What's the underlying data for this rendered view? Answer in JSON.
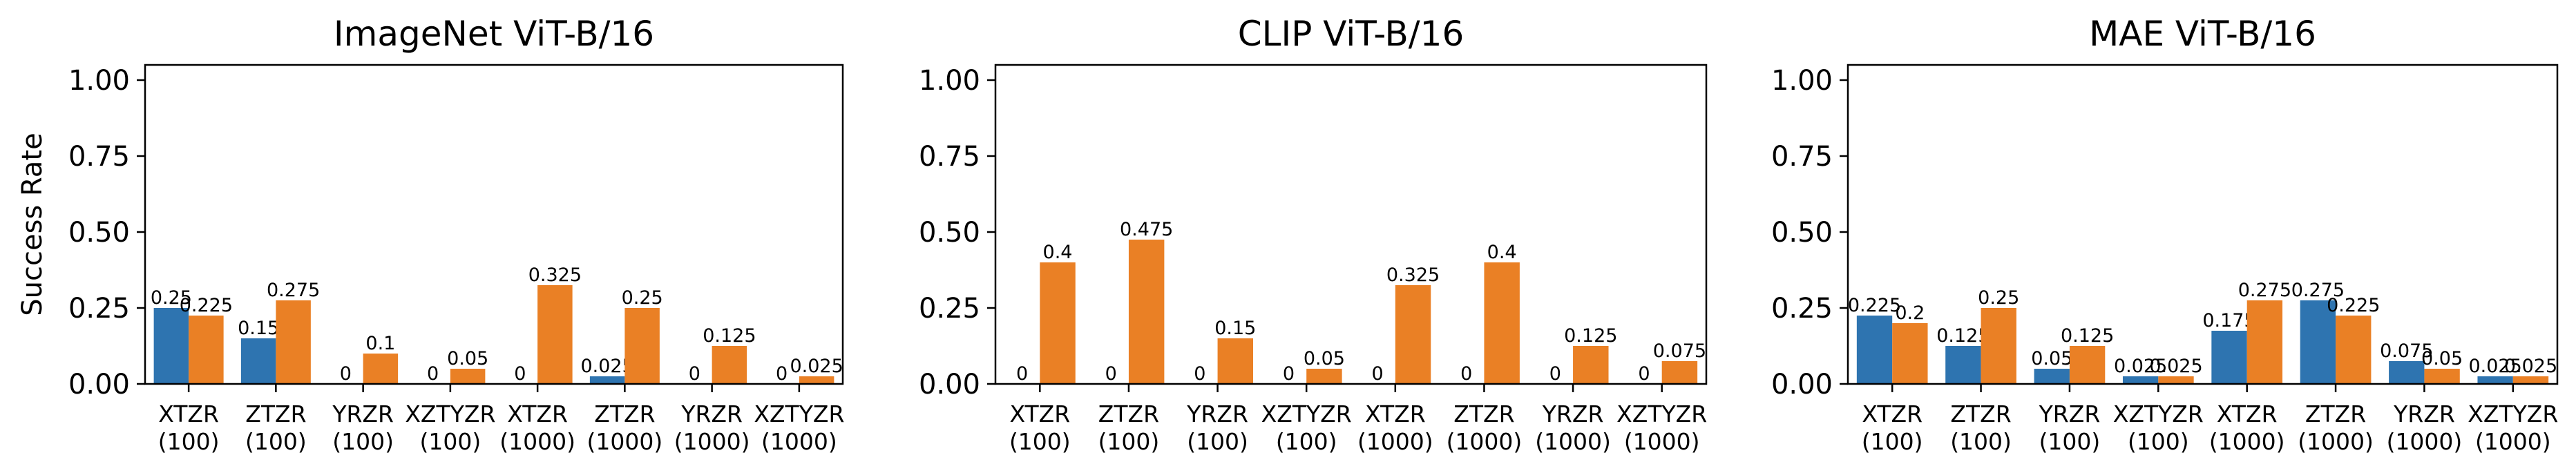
{
  "colors": {
    "series_a": "#2e74b0",
    "series_b": "#ea8025",
    "axis": "#000000"
  },
  "chart_data": [
    {
      "type": "bar",
      "title": "ImageNet ViT-B/16",
      "ylabel": "Success Rate",
      "ylim": [
        0,
        1.05
      ],
      "yticks": [
        "0.00",
        "0.25",
        "0.50",
        "0.75",
        "1.00"
      ],
      "categories": [
        [
          "XTZR",
          "(100)"
        ],
        [
          "ZTZR",
          "(100)"
        ],
        [
          "YRZR",
          "(100)"
        ],
        [
          "XZTYZR",
          "(100)"
        ],
        [
          "XTZR",
          "(1000)"
        ],
        [
          "ZTZR",
          "(1000)"
        ],
        [
          "YRZR",
          "(1000)"
        ],
        [
          "XZTYZR",
          "(1000)"
        ]
      ],
      "series": [
        {
          "values": [
            0.25,
            0.15,
            0,
            0,
            0,
            0.025,
            0,
            0
          ],
          "labels": [
            "0.25",
            "0.15",
            "0",
            "0",
            "0",
            "0.025",
            "0",
            "0"
          ]
        },
        {
          "values": [
            0.225,
            0.275,
            0.1,
            0.05,
            0.325,
            0.25,
            0.125,
            0.025
          ],
          "labels": [
            "0.225",
            "0.275",
            "0.1",
            "0.05",
            "0.325",
            "0.25",
            "0.125",
            "0.025"
          ]
        }
      ]
    },
    {
      "type": "bar",
      "title": "CLIP ViT-B/16",
      "ylabel": "",
      "ylim": [
        0,
        1.05
      ],
      "yticks": [
        "0.00",
        "0.25",
        "0.50",
        "0.75",
        "1.00"
      ],
      "categories": [
        [
          "XTZR",
          "(100)"
        ],
        [
          "ZTZR",
          "(100)"
        ],
        [
          "YRZR",
          "(100)"
        ],
        [
          "XZTYZR",
          "(100)"
        ],
        [
          "XTZR",
          "(1000)"
        ],
        [
          "ZTZR",
          "(1000)"
        ],
        [
          "YRZR",
          "(1000)"
        ],
        [
          "XZTYZR",
          "(1000)"
        ]
      ],
      "series": [
        {
          "values": [
            0,
            0,
            0,
            0,
            0,
            0,
            0,
            0
          ],
          "labels": [
            "0",
            "0",
            "0",
            "0",
            "0",
            "0",
            "0",
            "0"
          ]
        },
        {
          "values": [
            0.4,
            0.475,
            0.15,
            0.05,
            0.325,
            0.4,
            0.125,
            0.075
          ],
          "labels": [
            "0.4",
            "0.475",
            "0.15",
            "0.05",
            "0.325",
            "0.4",
            "0.125",
            "0.075"
          ]
        }
      ]
    },
    {
      "type": "bar",
      "title": "MAE ViT-B/16",
      "ylabel": "",
      "ylim": [
        0,
        1.05
      ],
      "yticks": [
        "0.00",
        "0.25",
        "0.50",
        "0.75",
        "1.00"
      ],
      "categories": [
        [
          "XTZR",
          "(100)"
        ],
        [
          "ZTZR",
          "(100)"
        ],
        [
          "YRZR",
          "(100)"
        ],
        [
          "XZTYZR",
          "(100)"
        ],
        [
          "XTZR",
          "(1000)"
        ],
        [
          "ZTZR",
          "(1000)"
        ],
        [
          "YRZR",
          "(1000)"
        ],
        [
          "XZTYZR",
          "(1000)"
        ]
      ],
      "series": [
        {
          "values": [
            0.225,
            0.125,
            0.05,
            0.025,
            0.175,
            0.275,
            0.075,
            0.025
          ],
          "labels": [
            "0.225",
            "0.125",
            "0.05",
            "0.025",
            "0.175",
            "0.275",
            "0.075",
            "0.025"
          ]
        },
        {
          "values": [
            0.2,
            0.25,
            0.125,
            0.025,
            0.275,
            0.225,
            0.05,
            0.025
          ],
          "labels": [
            "0.2",
            "0.25",
            "0.125",
            "0.025",
            "0.275",
            "0.225",
            "0.05",
            "0.025"
          ]
        }
      ]
    }
  ]
}
